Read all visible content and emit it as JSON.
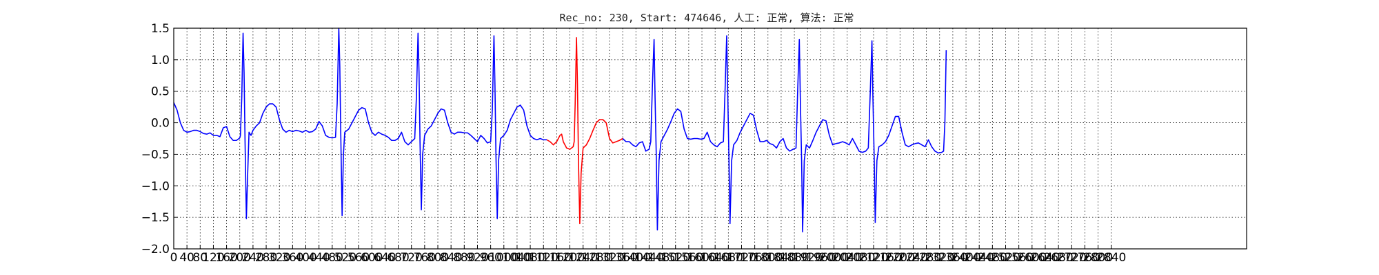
{
  "chart_data": {
    "type": "line",
    "title": "Rec_no: 230, Start: 474646, 人工: 正常, 算法: 正常",
    "xlabel": "",
    "ylabel": "",
    "xlim": [
      0,
      3250
    ],
    "ylim": [
      -2.0,
      1.5
    ],
    "grid": true,
    "grid_style": "dotted",
    "yticks": [
      1.5,
      1.0,
      0.5,
      0.0,
      -0.5,
      -1.0,
      -1.5,
      -2.0
    ],
    "ytick_labels": [
      "1.5",
      "1.0",
      "0.5",
      "0.0",
      "−0.5",
      "−1.0",
      "−1.5",
      "−2.0"
    ],
    "xticks": [
      0,
      40,
      80,
      120,
      160,
      200,
      240,
      280,
      320,
      360,
      400,
      440,
      480,
      520,
      560,
      600,
      640,
      680,
      720,
      760,
      800,
      840,
      880,
      920,
      960,
      1000,
      1040,
      1080,
      1120,
      1160,
      1200,
      1240,
      1280,
      1320,
      1360,
      1400,
      1440,
      1480,
      1520,
      1560,
      1600,
      1640,
      1680,
      1720,
      1760,
      1800,
      1840,
      1880,
      1920,
      1960,
      2000,
      2040,
      2080,
      2120,
      2160,
      2200,
      2240,
      2280,
      2320,
      2360,
      2400,
      2440,
      2480,
      2520,
      2560,
      2600,
      2640,
      2680,
      2720,
      2760,
      2800,
      2840
    ],
    "xtick_labels": [
      "0",
      "40",
      "80",
      "120",
      "160",
      "200",
      "240",
      "280",
      "320",
      "360",
      "400",
      "440",
      "480",
      "520",
      "560",
      "600",
      "640",
      "680",
      "720",
      "760",
      "800",
      "840",
      "880",
      "920",
      "960",
      "1000",
      "1040",
      "1080",
      "1120",
      "1160",
      "1200",
      "1240",
      "1280",
      "1320",
      "1360",
      "1400",
      "1440",
      "1480",
      "1520",
      "1560",
      "1600",
      "1640",
      "1680",
      "1720",
      "1760",
      "1800",
      "1840",
      "1880",
      "1920",
      "1960",
      "2000",
      "2040",
      "2080",
      "2120",
      "2160",
      "2200",
      "2240",
      "2280",
      "2320",
      "2360",
      "2400",
      "2440",
      "2480",
      "2520",
      "2560",
      "2600",
      "2640",
      "2680",
      "2720",
      "2760",
      "2800",
      "2840"
    ],
    "series": [
      {
        "color": "#0000ff",
        "segment_range": [
          0,
          1228
        ],
        "points": [
          [
            0,
            0.32
          ],
          [
            10,
            0.2
          ],
          [
            20,
            0.0
          ],
          [
            30,
            -0.12
          ],
          [
            40,
            -0.15
          ],
          [
            50,
            -0.14
          ],
          [
            60,
            -0.12
          ],
          [
            70,
            -0.12
          ],
          [
            80,
            -0.14
          ],
          [
            90,
            -0.17
          ],
          [
            100,
            -0.18
          ],
          [
            110,
            -0.16
          ],
          [
            120,
            -0.2
          ],
          [
            130,
            -0.2
          ],
          [
            140,
            -0.22
          ],
          [
            150,
            -0.08
          ],
          [
            160,
            -0.06
          ],
          [
            170,
            -0.22
          ],
          [
            180,
            -0.28
          ],
          [
            190,
            -0.28
          ],
          [
            200,
            -0.24
          ],
          [
            202,
            -0.2
          ],
          [
            206,
            0.4
          ],
          [
            210,
            1.42
          ],
          [
            213,
            0.8
          ],
          [
            216,
            -0.3
          ],
          [
            220,
            -1.52
          ],
          [
            224,
            -0.8
          ],
          [
            228,
            -0.15
          ],
          [
            234,
            -0.2
          ],
          [
            240,
            -0.12
          ],
          [
            250,
            -0.05
          ],
          [
            260,
            0.0
          ],
          [
            270,
            0.15
          ],
          [
            280,
            0.25
          ],
          [
            290,
            0.3
          ],
          [
            300,
            0.3
          ],
          [
            310,
            0.25
          ],
          [
            320,
            0.05
          ],
          [
            330,
            -0.1
          ],
          [
            340,
            -0.15
          ],
          [
            350,
            -0.12
          ],
          [
            360,
            -0.14
          ],
          [
            370,
            -0.12
          ],
          [
            380,
            -0.13
          ],
          [
            390,
            -0.15
          ],
          [
            400,
            -0.12
          ],
          [
            410,
            -0.15
          ],
          [
            420,
            -0.14
          ],
          [
            430,
            -0.1
          ],
          [
            440,
            0.02
          ],
          [
            450,
            -0.05
          ],
          [
            460,
            -0.2
          ],
          [
            470,
            -0.23
          ],
          [
            480,
            -0.24
          ],
          [
            490,
            -0.23
          ],
          [
            495,
            0.3
          ],
          [
            500,
            1.5
          ],
          [
            503,
            0.9
          ],
          [
            506,
            -0.2
          ],
          [
            510,
            -1.47
          ],
          [
            514,
            -0.5
          ],
          [
            518,
            -0.15
          ],
          [
            530,
            -0.1
          ],
          [
            540,
            0.0
          ],
          [
            550,
            0.1
          ],
          [
            560,
            0.2
          ],
          [
            570,
            0.24
          ],
          [
            580,
            0.22
          ],
          [
            590,
            0.0
          ],
          [
            600,
            -0.15
          ],
          [
            610,
            -0.2
          ],
          [
            620,
            -0.15
          ],
          [
            630,
            -0.18
          ],
          [
            640,
            -0.2
          ],
          [
            650,
            -0.23
          ],
          [
            660,
            -0.28
          ],
          [
            670,
            -0.28
          ],
          [
            680,
            -0.25
          ],
          [
            690,
            -0.15
          ],
          [
            700,
            -0.3
          ],
          [
            710,
            -0.35
          ],
          [
            720,
            -0.3
          ],
          [
            730,
            -0.25
          ],
          [
            735,
            0.4
          ],
          [
            740,
            1.42
          ],
          [
            743,
            0.8
          ],
          [
            746,
            -0.3
          ],
          [
            750,
            -1.38
          ],
          [
            754,
            -0.5
          ],
          [
            760,
            -0.2
          ],
          [
            770,
            -0.1
          ],
          [
            780,
            -0.05
          ],
          [
            790,
            0.05
          ],
          [
            800,
            0.15
          ],
          [
            810,
            0.22
          ],
          [
            820,
            0.2
          ],
          [
            830,
            0.0
          ],
          [
            840,
            -0.15
          ],
          [
            850,
            -0.18
          ],
          [
            860,
            -0.15
          ],
          [
            870,
            -0.15
          ],
          [
            880,
            -0.16
          ],
          [
            890,
            -0.16
          ],
          [
            900,
            -0.2
          ],
          [
            910,
            -0.25
          ],
          [
            920,
            -0.3
          ],
          [
            930,
            -0.2
          ],
          [
            940,
            -0.25
          ],
          [
            950,
            -0.32
          ],
          [
            960,
            -0.3
          ],
          [
            965,
            0.2
          ],
          [
            970,
            1.38
          ],
          [
            973,
            0.6
          ],
          [
            976,
            -0.5
          ],
          [
            980,
            -1.52
          ],
          [
            984,
            -0.6
          ],
          [
            990,
            -0.25
          ],
          [
            1000,
            -0.2
          ],
          [
            1010,
            -0.12
          ],
          [
            1020,
            0.05
          ],
          [
            1030,
            0.15
          ],
          [
            1040,
            0.25
          ],
          [
            1050,
            0.28
          ],
          [
            1060,
            0.2
          ],
          [
            1070,
            -0.05
          ],
          [
            1080,
            -0.2
          ],
          [
            1090,
            -0.25
          ],
          [
            1100,
            -0.27
          ],
          [
            1110,
            -0.25
          ],
          [
            1120,
            -0.27
          ],
          [
            1130,
            -0.27
          ]
        ]
      },
      {
        "color": "#ff0000",
        "segment_range": [
          1130,
          1445
        ],
        "points": [
          [
            1130,
            -0.27
          ],
          [
            1140,
            -0.3
          ],
          [
            1150,
            -0.35
          ],
          [
            1160,
            -0.3
          ],
          [
            1170,
            -0.2
          ],
          [
            1175,
            -0.18
          ],
          [
            1180,
            -0.3
          ],
          [
            1190,
            -0.4
          ],
          [
            1200,
            -0.42
          ],
          [
            1210,
            -0.38
          ],
          [
            1213,
            -0.3
          ],
          [
            1216,
            0.3
          ],
          [
            1220,
            1.35
          ],
          [
            1223,
            0.6
          ],
          [
            1226,
            -0.6
          ],
          [
            1230,
            -1.6
          ],
          [
            1234,
            -0.8
          ],
          [
            1240,
            -0.4
          ],
          [
            1250,
            -0.35
          ],
          [
            1260,
            -0.25
          ],
          [
            1270,
            -0.12
          ],
          [
            1280,
            0.0
          ],
          [
            1290,
            0.05
          ],
          [
            1300,
            0.05
          ],
          [
            1310,
            0.0
          ],
          [
            1320,
            -0.25
          ],
          [
            1330,
            -0.32
          ],
          [
            1340,
            -0.3
          ],
          [
            1350,
            -0.28
          ],
          [
            1360,
            -0.25
          ]
        ]
      },
      {
        "color": "#0000ff",
        "segment_range": [
          1360,
          2870
        ],
        "points": [
          [
            1360,
            -0.25
          ],
          [
            1370,
            -0.3
          ],
          [
            1380,
            -0.3
          ],
          [
            1390,
            -0.35
          ],
          [
            1400,
            -0.38
          ],
          [
            1410,
            -0.32
          ],
          [
            1420,
            -0.3
          ],
          [
            1430,
            -0.45
          ],
          [
            1440,
            -0.42
          ],
          [
            1445,
            -0.3
          ],
          [
            1450,
            0.6
          ],
          [
            1455,
            1.32
          ],
          [
            1458,
            0.4
          ],
          [
            1462,
            -0.6
          ],
          [
            1465,
            -1.7
          ],
          [
            1470,
            -0.6
          ],
          [
            1476,
            -0.3
          ],
          [
            1486,
            -0.2
          ],
          [
            1496,
            -0.1
          ],
          [
            1506,
            0.02
          ],
          [
            1516,
            0.15
          ],
          [
            1526,
            0.22
          ],
          [
            1536,
            0.18
          ],
          [
            1546,
            -0.1
          ],
          [
            1556,
            -0.25
          ],
          [
            1566,
            -0.26
          ],
          [
            1576,
            -0.25
          ],
          [
            1586,
            -0.25
          ],
          [
            1596,
            -0.26
          ],
          [
            1606,
            -0.25
          ],
          [
            1616,
            -0.15
          ],
          [
            1626,
            -0.3
          ],
          [
            1636,
            -0.35
          ],
          [
            1646,
            -0.38
          ],
          [
            1656,
            -0.32
          ],
          [
            1665,
            -0.3
          ],
          [
            1670,
            0.5
          ],
          [
            1675,
            1.38
          ],
          [
            1678,
            0.5
          ],
          [
            1682,
            -0.6
          ],
          [
            1685,
            -1.6
          ],
          [
            1690,
            -0.6
          ],
          [
            1696,
            -0.35
          ],
          [
            1706,
            -0.28
          ],
          [
            1716,
            -0.15
          ],
          [
            1726,
            -0.05
          ],
          [
            1736,
            0.05
          ],
          [
            1746,
            0.15
          ],
          [
            1756,
            0.12
          ],
          [
            1766,
            -0.12
          ],
          [
            1776,
            -0.3
          ],
          [
            1786,
            -0.3
          ],
          [
            1796,
            -0.28
          ],
          [
            1806,
            -0.33
          ],
          [
            1816,
            -0.35
          ],
          [
            1826,
            -0.4
          ],
          [
            1836,
            -0.3
          ],
          [
            1846,
            -0.25
          ],
          [
            1856,
            -0.4
          ],
          [
            1866,
            -0.45
          ],
          [
            1876,
            -0.42
          ],
          [
            1885,
            -0.4
          ],
          [
            1890,
            0.5
          ],
          [
            1895,
            1.32
          ],
          [
            1898,
            0.4
          ],
          [
            1902,
            -0.6
          ],
          [
            1905,
            -1.73
          ],
          [
            1910,
            -0.6
          ],
          [
            1916,
            -0.35
          ],
          [
            1926,
            -0.4
          ],
          [
            1936,
            -0.28
          ],
          [
            1946,
            -0.15
          ],
          [
            1956,
            -0.05
          ],
          [
            1966,
            0.05
          ],
          [
            1976,
            0.03
          ],
          [
            1986,
            -0.2
          ],
          [
            1996,
            -0.35
          ],
          [
            2006,
            -0.33
          ],
          [
            2016,
            -0.32
          ],
          [
            2026,
            -0.3
          ],
          [
            2036,
            -0.32
          ],
          [
            2046,
            -0.35
          ],
          [
            2056,
            -0.25
          ],
          [
            2066,
            -0.35
          ],
          [
            2076,
            -0.45
          ],
          [
            2086,
            -0.47
          ],
          [
            2096,
            -0.45
          ],
          [
            2104,
            -0.4
          ],
          [
            2110,
            0.5
          ],
          [
            2115,
            1.3
          ],
          [
            2118,
            0.4
          ],
          [
            2122,
            -0.6
          ],
          [
            2125,
            -1.58
          ],
          [
            2130,
            -0.6
          ],
          [
            2136,
            -0.38
          ],
          [
            2146,
            -0.35
          ],
          [
            2156,
            -0.3
          ],
          [
            2166,
            -0.2
          ],
          [
            2176,
            -0.05
          ],
          [
            2186,
            0.1
          ],
          [
            2196,
            0.1
          ],
          [
            2206,
            -0.15
          ],
          [
            2216,
            -0.35
          ],
          [
            2226,
            -0.38
          ],
          [
            2236,
            -0.35
          ],
          [
            2246,
            -0.33
          ],
          [
            2256,
            -0.32
          ],
          [
            2266,
            -0.35
          ],
          [
            2276,
            -0.38
          ],
          [
            2286,
            -0.27
          ],
          [
            2296,
            -0.38
          ],
          [
            2306,
            -0.45
          ],
          [
            2316,
            -0.48
          ],
          [
            2326,
            -0.47
          ],
          [
            2332,
            -0.45
          ],
          [
            2336,
            0.0
          ],
          [
            2340,
            1.15
          ]
        ]
      }
    ]
  }
}
